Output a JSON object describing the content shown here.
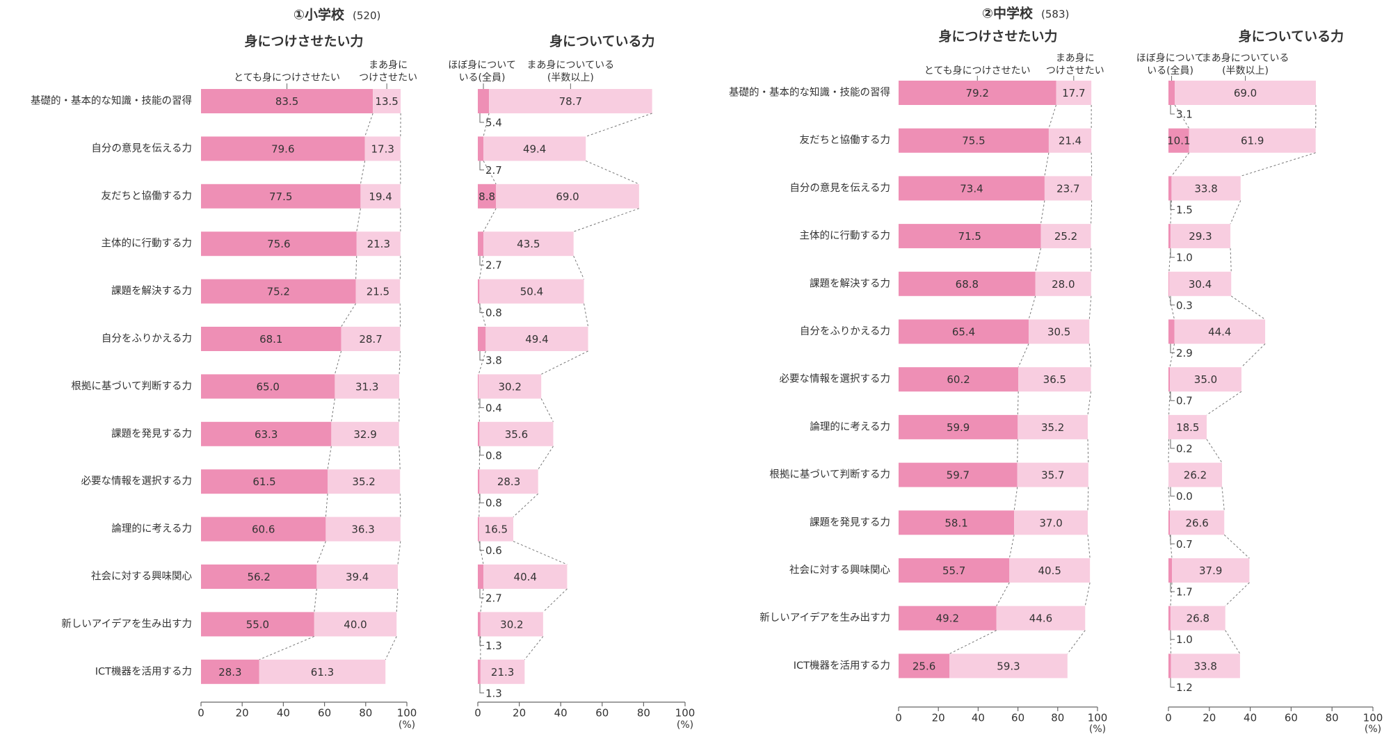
{
  "colors": {
    "dark": "#ee8fb5",
    "light": "#f8cde0",
    "axis": "#666666",
    "text": "#333333",
    "connector": "#777777"
  },
  "chart_data": [
    {
      "type": "bar",
      "title": "①小学校",
      "n": "(520)",
      "left": {
        "title": "身につけさせたい力",
        "legend": [
          "とても身につけさせたい",
          "まあ身に\nつけさせたい"
        ],
        "series": [
          {
            "name": "とても身につけさせたい",
            "values": [
              83.5,
              79.6,
              77.5,
              75.6,
              75.2,
              68.1,
              65.0,
              63.3,
              61.5,
              60.6,
              56.2,
              55.0,
              28.3
            ]
          },
          {
            "name": "まあ身につけさせたい",
            "values": [
              13.5,
              17.3,
              19.4,
              21.3,
              21.5,
              28.7,
              31.3,
              32.9,
              35.2,
              36.3,
              39.4,
              40.0,
              61.3
            ]
          }
        ],
        "xlim": [
          0,
          100
        ],
        "ticks": [
          "0",
          "20",
          "40",
          "60",
          "80",
          "100"
        ],
        "unit": "(%)"
      },
      "right": {
        "title": "身についている力",
        "legend": [
          "ほぼ身について\nいる(全員)",
          "まあ身についている\n(半数以上)"
        ],
        "series": [
          {
            "name": "ほぼ身についている(全員)",
            "values": [
              5.4,
              2.7,
              8.8,
              2.7,
              0.8,
              3.8,
              0.4,
              0.8,
              0.8,
              0.6,
              2.7,
              1.3,
              1.3
            ]
          },
          {
            "name": "まあ身についている(半数以上)",
            "values": [
              78.7,
              49.4,
              69.0,
              43.5,
              50.4,
              49.4,
              30.2,
              35.6,
              28.3,
              16.5,
              40.4,
              30.2,
              21.3
            ]
          }
        ],
        "xlim": [
          0,
          100
        ],
        "ticks": [
          "0",
          "20",
          "40",
          "60",
          "80",
          "100"
        ],
        "unit": "(%)"
      },
      "categories": [
        "基礎的・基本的な知識・技能の習得",
        "自分の意見を伝える力",
        "友だちと協働する力",
        "主体的に行動する力",
        "課題を解決する力",
        "自分をふりかえる力",
        "根拠に基づいて判断する力",
        "課題を発見する力",
        "必要な情報を選択する力",
        "論理的に考える力",
        "社会に対する興味関心",
        "新しいアイデアを生み出す力",
        "ICT機器を活用する力"
      ]
    },
    {
      "type": "bar",
      "title": "②中学校",
      "n": "(583)",
      "left": {
        "title": "身につけさせたい力",
        "legend": [
          "とても身につけさせたい",
          "まあ身に\nつけさせたい"
        ],
        "series": [
          {
            "name": "とても身につけさせたい",
            "values": [
              79.2,
              75.5,
              73.4,
              71.5,
              68.8,
              65.4,
              60.2,
              59.9,
              59.7,
              58.1,
              55.7,
              49.2,
              25.6
            ]
          },
          {
            "name": "まあ身につけさせたい",
            "values": [
              17.7,
              21.4,
              23.7,
              25.2,
              28.0,
              30.5,
              36.5,
              35.2,
              35.7,
              37.0,
              40.5,
              44.6,
              59.3
            ]
          }
        ],
        "xlim": [
          0,
          100
        ],
        "ticks": [
          "0",
          "20",
          "40",
          "60",
          "80",
          "100"
        ],
        "unit": "(%)"
      },
      "right": {
        "title": "身についている力",
        "legend": [
          "ほぼ身について\nいる(全員)",
          "まあ身についている\n(半数以上)"
        ],
        "series": [
          {
            "name": "ほぼ身についている(全員)",
            "values": [
              3.1,
              10.1,
              1.5,
              1.0,
              0.3,
              2.9,
              0.7,
              0.2,
              0.0,
              0.7,
              1.7,
              1.0,
              1.2
            ]
          },
          {
            "name": "まあ身についている(半数以上)",
            "values": [
              69.0,
              61.9,
              33.8,
              29.3,
              30.4,
              44.4,
              35.0,
              18.5,
              26.2,
              26.6,
              37.9,
              26.8,
              33.8
            ]
          }
        ],
        "xlim": [
          0,
          100
        ],
        "ticks": [
          "0",
          "20",
          "40",
          "60",
          "80",
          "100"
        ],
        "unit": "(%)"
      },
      "categories": [
        "基礎的・基本的な知識・技能の習得",
        "友だちと協働する力",
        "自分の意見を伝える力",
        "主体的に行動する力",
        "課題を解決する力",
        "自分をふりかえる力",
        "必要な情報を選択する力",
        "論理的に考える力",
        "根拠に基づいて判断する力",
        "課題を発見する力",
        "社会に対する興味関心",
        "新しいアイデアを生み出す力",
        "ICT機器を活用する力"
      ]
    }
  ]
}
